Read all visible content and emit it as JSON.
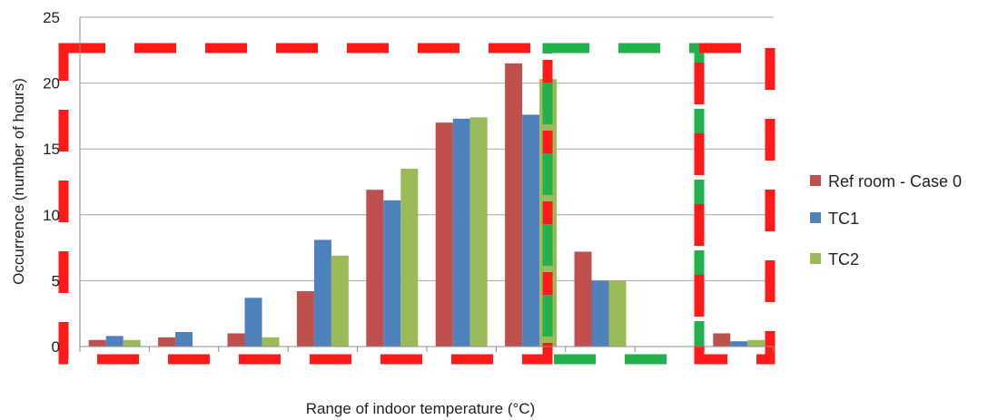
{
  "chart_data": {
    "type": "bar",
    "title": "",
    "xlabel": "Range of indoor temperature (°C)",
    "ylabel": "Occurrence (number of hours)",
    "ylim": [
      0,
      25
    ],
    "yticks": [
      0,
      5,
      10,
      15,
      20,
      25
    ],
    "grid": true,
    "legend_placement": "right",
    "categories": [
      "",
      "",
      "",
      "",
      "",
      "",
      "",
      "",
      "",
      ""
    ],
    "series": [
      {
        "name": "Ref room - Case 0",
        "color": "#c0504d",
        "values": [
          0.5,
          0.7,
          1.0,
          4.2,
          11.9,
          17.0,
          21.5,
          7.2,
          0.0,
          1.0
        ]
      },
      {
        "name": "TC1",
        "color": "#4f81bd",
        "values": [
          0.8,
          1.1,
          3.7,
          8.1,
          11.1,
          17.3,
          17.6,
          5.0,
          0.0,
          0.4
        ]
      },
      {
        "name": "TC2",
        "color": "#9bbb59",
        "values": [
          0.5,
          0.0,
          0.7,
          6.9,
          13.5,
          17.4,
          20.3,
          5.0,
          0.0,
          0.5
        ]
      }
    ],
    "annotations": [
      {
        "type": "dashed-box",
        "color": "#ff1a1a",
        "x_range": [
          0,
          7
        ],
        "y_range": [
          0,
          22.5
        ]
      },
      {
        "type": "dashed-box",
        "color": "#22b14c",
        "x_range": [
          6,
          8
        ],
        "y_range": [
          0,
          22.5
        ]
      },
      {
        "type": "dashed-box",
        "color": "#ff1a1a",
        "x_range": [
          8,
          9
        ],
        "y_range": [
          0,
          22.5
        ]
      }
    ]
  }
}
